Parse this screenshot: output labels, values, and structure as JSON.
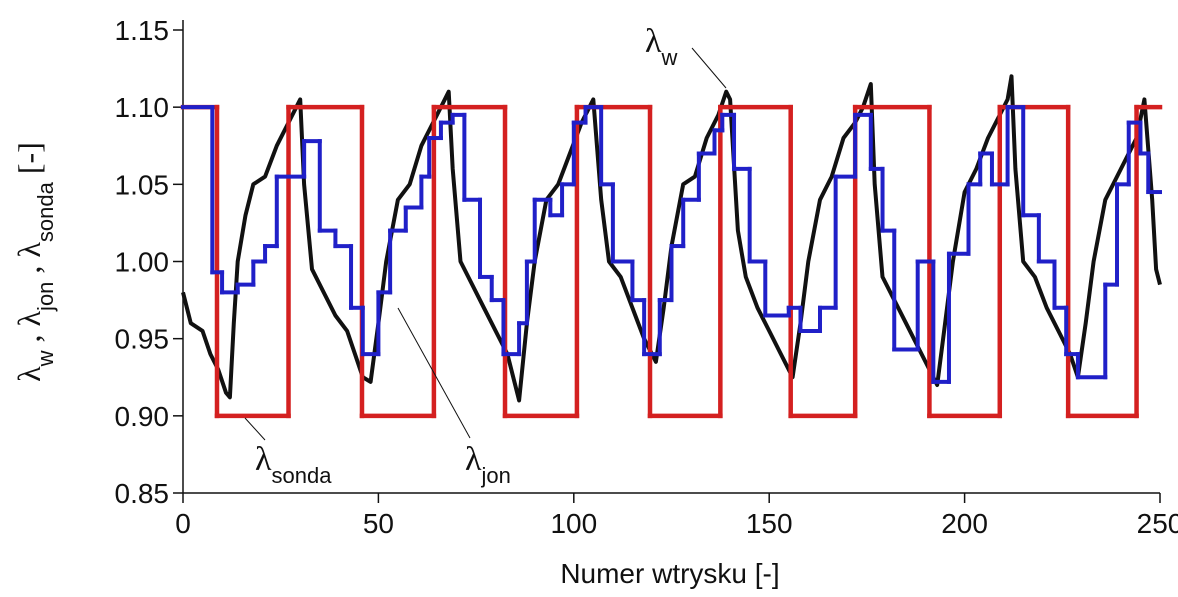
{
  "chart_data": {
    "type": "line",
    "xlabel": "Numer wtrysku [-]",
    "ylabel": [
      {
        "text": "λ"
      },
      {
        "text": "w",
        "sub": true
      },
      {
        "text": " , λ"
      },
      {
        "text": "jon",
        "sub": true
      },
      {
        "text": " , λ"
      },
      {
        "text": "sonda",
        "sub": true
      },
      {
        "text": " [-]"
      }
    ],
    "xlim": [
      0,
      250
    ],
    "xticks": [
      0,
      50,
      100,
      150,
      200,
      250
    ],
    "ylim": [
      0.85,
      1.15
    ],
    "yticks": [
      1.15,
      {
        "value": 1.1,
        "label": "1.10"
      },
      1.05,
      {
        "value": 1.0,
        "label": "1.00"
      },
      0.95,
      {
        "value": 0.9,
        "label": "0.90"
      },
      0.85
    ],
    "grid": false,
    "series": [
      {
        "name": [
          {
            "text": "λ"
          },
          {
            "text": "w",
            "sub": true
          }
        ],
        "color": "#111111",
        "drawstyle": "line",
        "x": [
          0,
          2,
          5,
          7,
          9,
          11,
          12,
          13,
          14,
          16,
          18,
          21,
          24,
          27,
          29,
          30,
          31,
          33,
          36,
          39,
          42,
          44,
          46,
          48,
          50,
          52,
          55,
          58,
          61,
          64,
          66,
          68,
          69,
          71,
          74,
          77,
          80,
          83,
          86,
          88,
          90,
          93,
          96,
          99,
          102,
          104,
          105,
          107,
          109,
          112,
          115,
          118,
          121,
          123,
          125,
          128,
          131,
          134,
          137,
          139,
          140,
          142,
          144,
          147,
          150,
          153,
          156,
          158,
          160,
          163,
          166,
          169,
          172,
          174,
          176,
          177,
          179,
          182,
          185,
          188,
          191,
          193,
          195,
          197,
          200,
          203,
          206,
          209,
          211,
          212,
          213,
          215,
          218,
          221,
          224,
          227,
          229,
          231,
          233,
          236,
          239,
          242,
          244,
          246,
          248,
          249,
          250
        ],
        "values": [
          0.98,
          0.96,
          0.955,
          0.94,
          0.93,
          0.915,
          0.912,
          0.96,
          1.0,
          1.03,
          1.05,
          1.055,
          1.075,
          1.09,
          1.1,
          1.105,
          1.05,
          0.995,
          0.98,
          0.965,
          0.955,
          0.94,
          0.925,
          0.922,
          0.96,
          1.0,
          1.04,
          1.05,
          1.075,
          1.09,
          1.1,
          1.11,
          1.06,
          1.0,
          0.985,
          0.97,
          0.955,
          0.94,
          0.91,
          0.96,
          1.0,
          1.04,
          1.05,
          1.07,
          1.09,
          1.1,
          1.105,
          1.04,
          1.0,
          0.99,
          0.97,
          0.95,
          0.935,
          0.97,
          1.01,
          1.05,
          1.055,
          1.08,
          1.095,
          1.11,
          1.105,
          1.02,
          0.99,
          0.97,
          0.955,
          0.94,
          0.925,
          0.96,
          1.0,
          1.04,
          1.055,
          1.08,
          1.09,
          1.1,
          1.115,
          1.05,
          0.99,
          0.975,
          0.96,
          0.945,
          0.93,
          0.92,
          0.96,
          1.0,
          1.045,
          1.06,
          1.08,
          1.095,
          1.105,
          1.12,
          1.06,
          1.0,
          0.99,
          0.97,
          0.955,
          0.94,
          0.925,
          0.96,
          1.0,
          1.04,
          1.055,
          1.07,
          1.08,
          1.105,
          1.04,
          0.995,
          0.985
        ]
      },
      {
        "name": [
          {
            "text": "λ"
          },
          {
            "text": "sonda",
            "sub": true
          }
        ],
        "color": "#d42020",
        "drawstyle": "steps-post",
        "x": [
          0,
          8.7,
          27,
          45.8,
          64.2,
          82.4,
          100.8,
          119.5,
          137.5,
          155.5,
          172,
          191,
          209,
          226.5,
          244
        ],
        "values": [
          1.1,
          0.9,
          1.1,
          0.9,
          1.1,
          0.9,
          1.1,
          0.9,
          1.1,
          0.9,
          1.1,
          0.9,
          1.1,
          0.9,
          1.1
        ]
      },
      {
        "name": [
          {
            "text": "λ"
          },
          {
            "text": "jon",
            "sub": true
          }
        ],
        "color": "#2020c8",
        "drawstyle": "steps-post",
        "x": [
          0,
          7.5,
          10,
          14,
          18,
          21,
          24,
          31,
          35,
          39,
          43,
          46,
          50,
          53,
          57,
          61,
          63,
          66,
          69,
          72,
          76,
          79,
          82,
          86,
          88,
          90,
          94,
          97,
          100,
          103,
          107,
          110,
          115,
          118,
          122,
          125,
          128,
          132,
          136,
          138,
          141,
          145,
          149,
          155,
          158,
          163,
          167,
          172,
          176,
          179,
          182,
          188,
          192,
          196,
          201,
          204,
          207,
          211,
          215,
          219,
          223,
          226,
          229,
          236,
          239,
          242,
          245,
          247
        ],
        "values": [
          1.1,
          0.993,
          0.98,
          0.985,
          1.0,
          1.01,
          1.055,
          1.078,
          1.02,
          1.01,
          0.97,
          0.94,
          0.98,
          1.02,
          1.035,
          1.055,
          1.08,
          1.09,
          1.095,
          1.04,
          0.99,
          0.975,
          0.94,
          0.96,
          1.0,
          1.04,
          1.03,
          1.05,
          1.09,
          1.1,
          1.05,
          1.0,
          0.975,
          0.94,
          0.975,
          1.01,
          1.04,
          1.07,
          1.085,
          1.095,
          1.06,
          1.0,
          0.965,
          0.97,
          0.955,
          0.97,
          1.055,
          1.095,
          1.06,
          1.02,
          0.943,
          1.0,
          0.922,
          1.005,
          1.05,
          1.07,
          1.05,
          1.1,
          1.03,
          1.0,
          0.97,
          0.94,
          0.925,
          0.985,
          1.05,
          1.09,
          1.07,
          1.045
        ]
      }
    ]
  }
}
